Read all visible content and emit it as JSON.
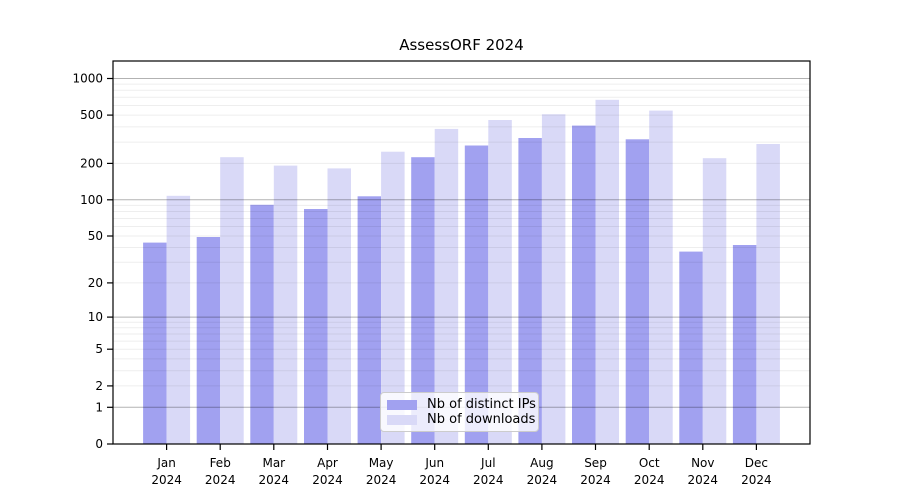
{
  "title": "AssessORF 2024",
  "legend": {
    "items": [
      {
        "key": "distinct-ips",
        "label": "Nb of distinct IPs",
        "color": "#a1a1f0"
      },
      {
        "key": "downloads",
        "label": "Nb of downloads",
        "color": "#d9d9f7"
      }
    ]
  },
  "chart_data": {
    "type": "bar",
    "title": "AssessORF 2024",
    "y_scale": "log1p",
    "categories": [
      "Jan 2024",
      "Feb 2024",
      "Mar 2024",
      "Apr 2024",
      "May 2024",
      "Jun 2024",
      "Jul 2024",
      "Aug 2024",
      "Sep 2024",
      "Oct 2024",
      "Nov 2024",
      "Dec 2024"
    ],
    "series": [
      {
        "name": "Nb of distinct IPs",
        "color": "#a1a1f0",
        "values": [
          44,
          49,
          91,
          84,
          107,
          225,
          281,
          324,
          410,
          316,
          37,
          42
        ]
      },
      {
        "name": "Nb of downloads",
        "color": "#d9d9f7",
        "values": [
          108,
          225,
          192,
          182,
          250,
          385,
          456,
          508,
          668,
          545,
          221,
          289
        ]
      }
    ],
    "y_ticks": [
      0,
      1,
      2,
      5,
      10,
      20,
      50,
      100,
      200,
      500,
      1000
    ],
    "ylim": [
      0,
      1400
    ],
    "xlabel": "",
    "ylabel": "",
    "grid": {
      "major": [
        1,
        10,
        100,
        1000
      ],
      "minor": [
        2,
        3,
        4,
        5,
        6,
        7,
        8,
        9,
        20,
        30,
        40,
        50,
        60,
        70,
        80,
        90,
        200,
        300,
        400,
        500,
        600,
        700,
        800,
        900
      ]
    },
    "legend_position": "inside-bottom-center"
  }
}
